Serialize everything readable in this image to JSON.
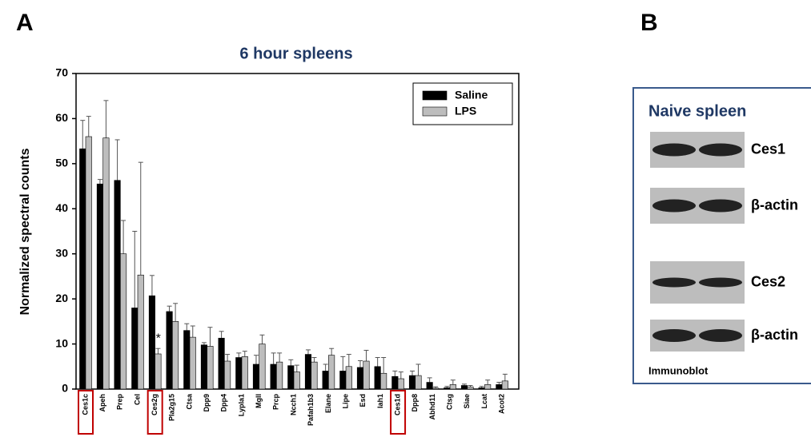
{
  "panel_labels": [
    "A",
    "B"
  ],
  "chart_data": {
    "type": "bar",
    "title": "6 hour spleens",
    "ylabel": "Normalized spectral counts",
    "categories": [
      "Ces1c",
      "Apeh",
      "Prep",
      "Cel",
      "Ces2g",
      "Pla2g15",
      "Ctsa",
      "Dpp9",
      "Dpp4",
      "Lypla1",
      "Mgll",
      "Prcp",
      "Ncch1",
      "Pafah1b3",
      "Elane",
      "Lipe",
      "Esd",
      "Iah1",
      "Ces1d",
      "Dpp8",
      "Abhd11",
      "Ctsg",
      "Siae",
      "Lcat",
      "Acot2"
    ],
    "series": [
      {
        "name": "Saline",
        "color": "#000000",
        "values": [
          53.3,
          45.5,
          46.3,
          18,
          20.7,
          17.2,
          13,
          9.8,
          11.3,
          7,
          5.5,
          5.5,
          5.2,
          7.7,
          4,
          4,
          4.8,
          5,
          2.8,
          3,
          1.5,
          0.3,
          0.8,
          0.3,
          1
        ],
        "errors": [
          6.3,
          1,
          9,
          17,
          4.5,
          1.2,
          1.5,
          0.5,
          1.5,
          1,
          2,
          2.5,
          1.3,
          1,
          1.5,
          3.2,
          1.5,
          2,
          1.2,
          1,
          1,
          0.3,
          0.3,
          0.3,
          0.5
        ]
      },
      {
        "name": "LPS",
        "color": "#bdbdbd",
        "values": [
          56,
          55.7,
          30,
          25.3,
          7.8,
          15,
          11.5,
          9.5,
          6.2,
          7.2,
          10,
          6,
          3.8,
          6,
          7.5,
          5,
          6.2,
          3.5,
          2.3,
          3,
          0.2,
          1,
          0.5,
          1,
          1.8
        ],
        "errors": [
          4.5,
          8.3,
          7.4,
          25,
          1.2,
          4,
          2.5,
          4.2,
          1.5,
          1.2,
          2,
          2,
          1.5,
          1,
          1.5,
          2.7,
          2.4,
          3.5,
          1.5,
          2.5,
          0.3,
          1,
          0.3,
          1,
          1.5
        ]
      }
    ],
    "ylim": [
      0,
      70
    ],
    "yticks": [
      0,
      10,
      20,
      30,
      40,
      50,
      60,
      70
    ],
    "legend": "upper right",
    "highlight": [
      0,
      4,
      18
    ],
    "highlight_color": "#c00000",
    "annotations": [
      {
        "text": "*",
        "category": 4
      }
    ]
  },
  "blot": {
    "title": "Naive spleen",
    "labels": [
      "Ces1",
      "β-actin",
      "Ces2",
      "β-actin"
    ],
    "footer": "Immunoblot"
  }
}
